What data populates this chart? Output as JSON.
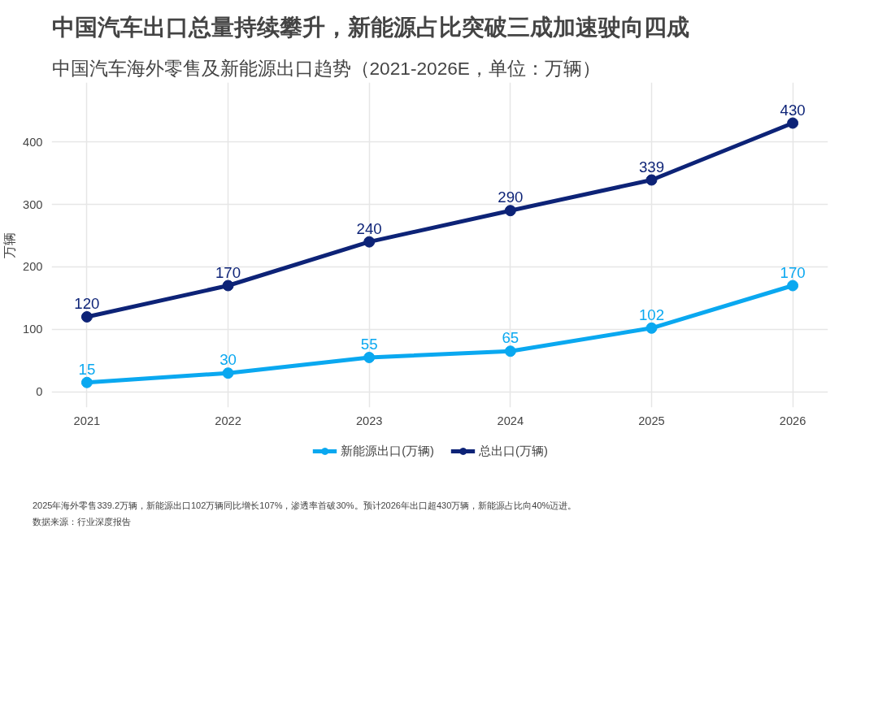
{
  "chart_data": {
    "type": "line",
    "title": "中国汽车出口总量持续攀升，新能源占比突破三成加速驶向四成",
    "subtitle": "中国汽车海外零售及新能源出口趋势（2021-2026E，单位：万辆）",
    "ylabel": "万辆",
    "x": [
      2021,
      2022,
      2023,
      2024,
      2025,
      2026
    ],
    "series": [
      {
        "name": "新能源出口(万辆)",
        "color": "#0aa8f0",
        "values": [
          15,
          30,
          55,
          65,
          102,
          170
        ]
      },
      {
        "name": "总出口(万辆)",
        "color": "#0d2377",
        "values": [
          120,
          170,
          240,
          290,
          339,
          430
        ]
      }
    ],
    "xlim": [
      2020.75,
      2026.25
    ],
    "xticks": [
      2021,
      2022,
      2023,
      2024,
      2025,
      2026
    ],
    "ylim": [
      -25,
      495
    ],
    "yticks": [
      0,
      100,
      200,
      300,
      400
    ],
    "grid": true,
    "legend": "bottom",
    "marker": "circle",
    "line_style": "solid",
    "data_labels": true,
    "annotations": [
      "2025年海外零售339.2万辆，新能源出口102万辆同比增长107%，渗透率首破30%。预计2026年出口超430万辆，新能源占比向40%迈进。",
      "数据来源：行业深度报告"
    ]
  }
}
